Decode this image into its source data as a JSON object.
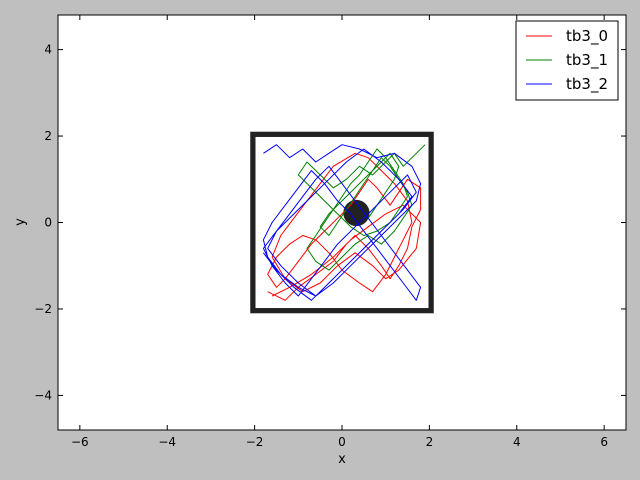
{
  "chart_data": {
    "type": "line",
    "title": "",
    "xlabel": "x",
    "ylabel": "y",
    "xlim": [
      -6.5,
      6.5
    ],
    "ylim": [
      -4.8,
      4.8
    ],
    "xticks": [
      -6,
      -4,
      -2,
      0,
      2,
      4,
      6
    ],
    "xtick_labels": [
      "−6",
      "−4",
      "−2",
      "0",
      "2",
      "4",
      "6"
    ],
    "yticks": [
      -4,
      -2,
      0,
      2,
      4
    ],
    "ytick_labels": [
      "−4",
      "−2",
      "0",
      "2",
      "4"
    ],
    "grid": false,
    "legend_position": "top-right",
    "arena": {
      "outer_wall": {
        "x0": -2.1,
        "x1": 2.1,
        "y0": -2.1,
        "y1": 2.1,
        "thickness": 0.12,
        "color": "#222222"
      },
      "obstacle": {
        "cx": 0.33,
        "cy": 0.22,
        "r": 0.3,
        "color": "#222222"
      }
    },
    "series": [
      {
        "name": "tb3_0",
        "color": "#ff0000",
        "x": [
          -1.7,
          -1.3,
          -1.0,
          -0.6,
          -0.2,
          0.1,
          0.3,
          0.6,
          0.9,
          1.1,
          1.3,
          1.5,
          1.6,
          1.8,
          1.8,
          1.5,
          1.3,
          1.1,
          0.8,
          0.6,
          0.4,
          0.2,
          -0.1,
          -0.4,
          -0.7,
          -1.0,
          -1.3,
          -1.5,
          -1.7,
          -1.5,
          -1.2,
          -0.9,
          -0.6,
          -0.3,
          0.0,
          0.4,
          0.7,
          1.0,
          1.2,
          1.4,
          1.6,
          1.5,
          1.2,
          0.9,
          0.6,
          0.3,
          -0.2,
          -0.5,
          -0.8,
          -1.1,
          -1.4,
          -1.6,
          -1.3,
          -0.9,
          -0.5,
          -0.1,
          0.3,
          0.7,
          1.0,
          1.3,
          1.7,
          1.8,
          1.4,
          1.0,
          0.6,
          0.2,
          -0.2,
          -0.7,
          -1.2,
          -1.6
        ],
        "y": [
          -1.6,
          -1.8,
          -1.5,
          -1.2,
          -0.9,
          -0.5,
          -0.3,
          -0.6,
          -1.0,
          -1.3,
          -1.0,
          -0.6,
          -0.1,
          0.3,
          0.8,
          1.0,
          0.7,
          0.4,
          0.8,
          1.0,
          0.7,
          0.4,
          0.1,
          -0.2,
          -0.5,
          -0.9,
          -1.3,
          -1.5,
          -1.2,
          -0.8,
          -0.5,
          -0.3,
          -0.4,
          -0.7,
          -1.1,
          -1.4,
          -1.6,
          -1.2,
          -0.8,
          -0.4,
          0.0,
          0.5,
          0.9,
          1.2,
          1.5,
          1.6,
          1.3,
          0.9,
          0.5,
          0.1,
          -0.3,
          -0.8,
          -1.3,
          -1.6,
          -1.4,
          -1.0,
          -0.7,
          -1.0,
          -1.3,
          -1.1,
          -0.6,
          0.0,
          0.4,
          0.2,
          -0.1,
          -0.4,
          -0.8,
          -1.2,
          -1.5,
          -1.7
        ]
      },
      {
        "name": "tb3_1",
        "color": "#008000",
        "x": [
          1.9,
          1.6,
          1.4,
          1.2,
          1.0,
          0.7,
          0.4,
          0.1,
          -0.2,
          -0.5,
          -0.8,
          -1.0,
          -0.7,
          -0.4,
          -0.1,
          0.2,
          0.5,
          0.8,
          1.1,
          1.3,
          1.5,
          1.4,
          1.2,
          1.0,
          0.8,
          0.6,
          0.4,
          0.2,
          0.0,
          -0.2,
          -0.4,
          -0.6,
          -0.8,
          -0.6,
          -0.3,
          0.0,
          0.3,
          0.6,
          0.9,
          1.2,
          1.4,
          1.6,
          1.5,
          1.3,
          1.1,
          0.9,
          0.7,
          0.5,
          0.3,
          0.1,
          -0.1,
          -0.3,
          -0.5,
          -0.3,
          0.0,
          0.3,
          0.6,
          0.9,
          1.1,
          1.3,
          1.2,
          1.0,
          0.8,
          0.6
        ],
        "y": [
          1.8,
          1.5,
          1.3,
          1.6,
          1.4,
          1.1,
          1.3,
          1.0,
          0.8,
          1.1,
          1.4,
          1.1,
          0.8,
          0.5,
          0.2,
          -0.1,
          -0.3,
          -0.2,
          0.0,
          0.3,
          0.6,
          0.9,
          1.2,
          1.5,
          1.7,
          1.4,
          1.1,
          0.9,
          0.6,
          0.3,
          0.0,
          -0.3,
          -0.6,
          -0.9,
          -1.1,
          -0.8,
          -0.5,
          -0.3,
          -0.5,
          -0.2,
          0.1,
          0.4,
          0.7,
          1.0,
          1.3,
          1.5,
          1.2,
          0.9,
          0.6,
          0.3,
          0.0,
          -0.3,
          -0.1,
          0.2,
          0.5,
          0.8,
          1.1,
          1.4,
          1.6,
          1.3,
          1.0,
          0.7,
          0.4,
          0.1
        ]
      },
      {
        "name": "tb3_2",
        "color": "#0000ff",
        "x": [
          -1.8,
          -1.5,
          -1.2,
          -0.9,
          -0.6,
          -0.3,
          0.0,
          0.4,
          0.8,
          1.2,
          1.6,
          1.8,
          1.7,
          1.4,
          1.0,
          0.6,
          0.2,
          -0.2,
          -0.6,
          -1.0,
          -1.4,
          -1.7,
          -1.8,
          -1.6,
          -1.3,
          -1.0,
          -0.7,
          -0.4,
          -0.1,
          0.2,
          0.5,
          0.8,
          1.1,
          1.4,
          1.7,
          1.8,
          1.5,
          1.2,
          0.9,
          0.6,
          0.3,
          0.0,
          -0.3,
          -0.6,
          -0.9,
          -1.2,
          -1.5,
          -1.8,
          -1.6,
          -1.3,
          -1.0,
          -0.7,
          -0.4,
          -0.1,
          0.3,
          0.7,
          1.1,
          1.5,
          1.7,
          1.4,
          1.0,
          0.6,
          0.2,
          -0.2,
          -0.6,
          -1.0,
          -1.4,
          -1.7,
          -1.5,
          -1.1,
          -0.7,
          -0.3,
          0.1,
          0.5,
          0.9,
          1.3,
          1.6,
          1.3,
          0.9,
          0.5,
          0.1,
          -0.3,
          -0.7,
          -1.1,
          -1.5,
          -1.8
        ],
        "y": [
          1.6,
          1.8,
          1.5,
          1.7,
          1.4,
          1.6,
          1.8,
          1.7,
          1.5,
          1.6,
          1.3,
          0.9,
          0.5,
          0.2,
          -0.2,
          -0.6,
          -1.0,
          -1.4,
          -1.7,
          -1.5,
          -1.2,
          -0.8,
          -0.4,
          0.0,
          0.4,
          0.8,
          1.2,
          0.9,
          0.5,
          0.2,
          -0.2,
          -0.6,
          -1.0,
          -1.4,
          -1.8,
          -1.5,
          -1.1,
          -0.7,
          -0.3,
          0.1,
          0.5,
          0.9,
          1.3,
          1.0,
          0.6,
          0.2,
          -0.2,
          -0.6,
          -1.0,
          -1.4,
          -1.7,
          -1.3,
          -0.9,
          -0.5,
          -0.1,
          0.3,
          0.7,
          1.1,
          0.7,
          0.3,
          -0.1,
          -0.5,
          -0.9,
          -1.3,
          -1.7,
          -1.4,
          -1.0,
          -0.6,
          -0.2,
          0.2,
          0.6,
          1.0,
          1.4,
          1.7,
          1.4,
          1.0,
          0.6,
          0.2,
          -0.2,
          -0.6,
          -1.0,
          -1.4,
          -1.8,
          -1.5,
          -1.1,
          -0.7
        ]
      }
    ]
  }
}
